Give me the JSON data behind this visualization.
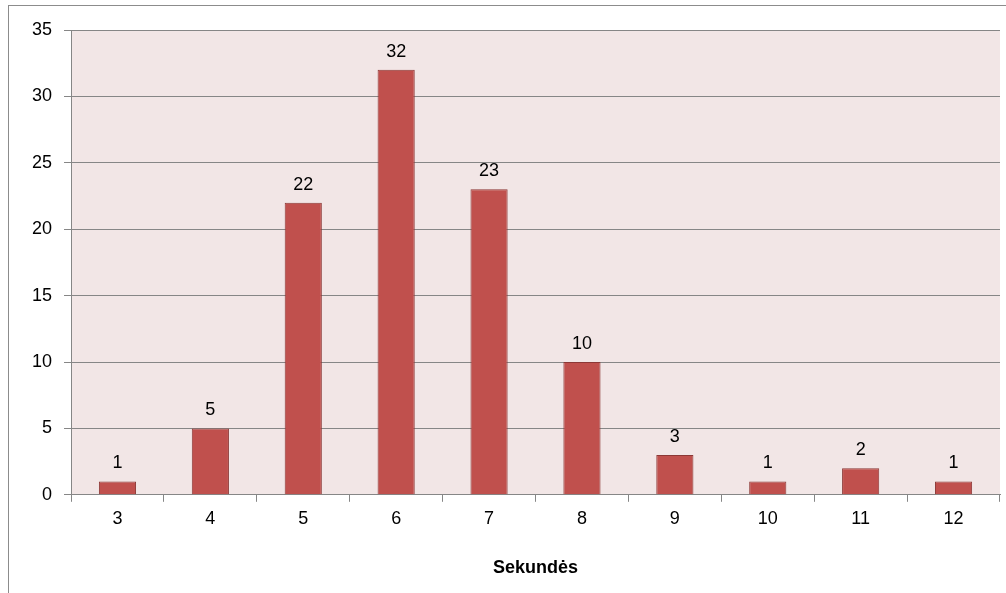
{
  "chart_data": {
    "type": "bar",
    "xlabel": "Sekundės",
    "categories": [
      "3",
      "4",
      "5",
      "6",
      "7",
      "8",
      "9",
      "10",
      "11",
      "12"
    ],
    "values": [
      1,
      5,
      22,
      32,
      23,
      10,
      3,
      1,
      2,
      1
    ],
    "color": "#c0504d",
    "ylim": [
      0,
      35
    ],
    "yticks": [
      0,
      5,
      10,
      15,
      20,
      25,
      30,
      35
    ],
    "grid": "y",
    "legend": false,
    "data_labels": true
  }
}
